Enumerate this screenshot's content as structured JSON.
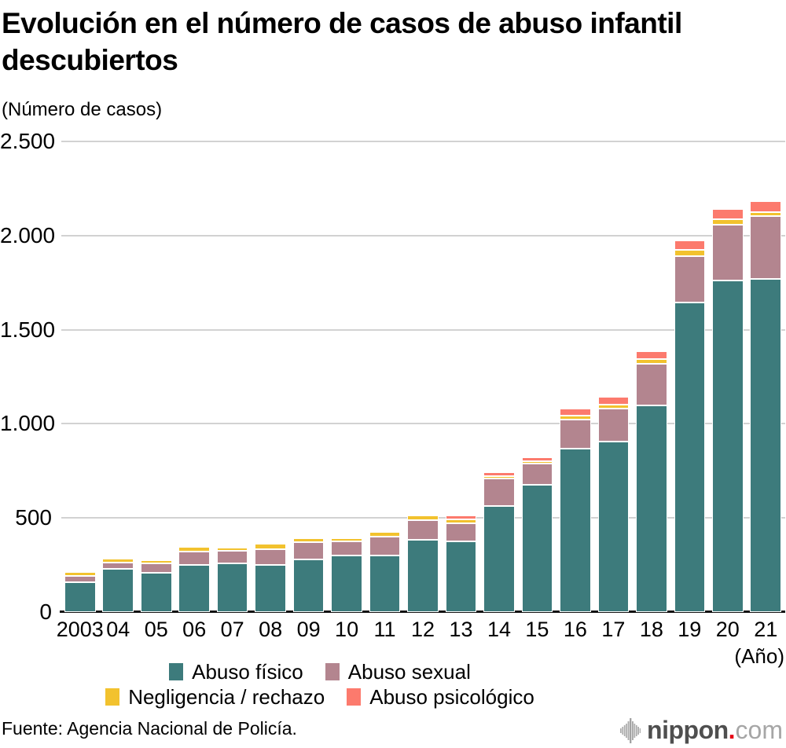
{
  "title": "Evolución en el número de casos de abuso infantil descubiertos",
  "subtitle": "(Número de casos)",
  "source": "Fuente: Agencia Nacional de Policía.",
  "x_axis_unit": "(Año)",
  "logo": {
    "icon": "soundwave-icon",
    "main": "nippon",
    "dot": ".",
    "tld": "com"
  },
  "colors": {
    "abuso_fisico": "#3d7b7c",
    "abuso_sexual": "#b3858f",
    "negligencia_rechazo": "#f2c22e",
    "abuso_psicologico": "#fc7a6d",
    "gridline": "#d2d2d2",
    "axis": "#121212",
    "logo_red": "#e60012"
  },
  "chart_data": {
    "type": "bar",
    "stacked": true,
    "title": "Evolución en el número de casos de abuso infantil descubiertos",
    "ylabel": "(Número de casos)",
    "xlabel": "(Año)",
    "grid": true,
    "legend_position": "bottom",
    "ylim": [
      0,
      2500
    ],
    "yticks": [
      0,
      500,
      1000,
      1500,
      2000,
      2500
    ],
    "ytick_labels": [
      "0",
      "500",
      "1.000",
      "1.500",
      "2.000",
      "2.500"
    ],
    "categories": [
      "2003",
      "04",
      "05",
      "06",
      "07",
      "08",
      "09",
      "10",
      "11",
      "12",
      "13",
      "14",
      "15",
      "16",
      "17",
      "18",
      "19",
      "20",
      "21"
    ],
    "series": [
      {
        "name": "Abuso físico",
        "slug": "abuso-fisico",
        "color": "#3d7b7c",
        "values": [
          160,
          228,
          208,
          249,
          258,
          252,
          281,
          299,
          302,
          386,
          375,
          565,
          678,
          869,
          905,
          1098,
          1646,
          1760,
          1771
        ]
      },
      {
        "name": "Abuso sexual",
        "slug": "abuso-sexual",
        "color": "#b3858f",
        "values": [
          31,
          35,
          50,
          74,
          66,
          83,
          91,
          76,
          100,
          104,
          98,
          144,
          112,
          153,
          174,
          223,
          243,
          296,
          334
        ]
      },
      {
        "name": "Negligencia / rechazo",
        "slug": "negligencia-rechazo",
        "color": "#f2c22e",
        "values": [
          21,
          22,
          19,
          24,
          20,
          27,
          19,
          19,
          25,
          22,
          21,
          14,
          13,
          21,
          24,
          21,
          35,
          31,
          19
        ]
      },
      {
        "name": "Abuso psicológico",
        "slug": "abuso-psicologico",
        "color": "#fc7a6d",
        "values": [
          0,
          0,
          0,
          0,
          0,
          0,
          0,
          0,
          0,
          10,
          21,
          18,
          18,
          39,
          39,
          42,
          52,
          53,
          58
        ]
      }
    ],
    "totals": [
      212,
      285,
      277,
      347,
      344,
      362,
      391,
      394,
      427,
      522,
      515,
      741,
      821,
      1082,
      1142,
      1384,
      1976,
      2140,
      2182
    ]
  },
  "legend": {
    "rows": [
      [
        {
          "label": "Abuso físico",
          "color": "#3d7b7c"
        },
        {
          "label": "Abuso sexual",
          "color": "#b3858f"
        }
      ],
      [
        {
          "label": "Negligencia / rechazo",
          "color": "#f2c22e"
        },
        {
          "label": "Abuso psicológico",
          "color": "#fc7a6d"
        }
      ]
    ]
  }
}
